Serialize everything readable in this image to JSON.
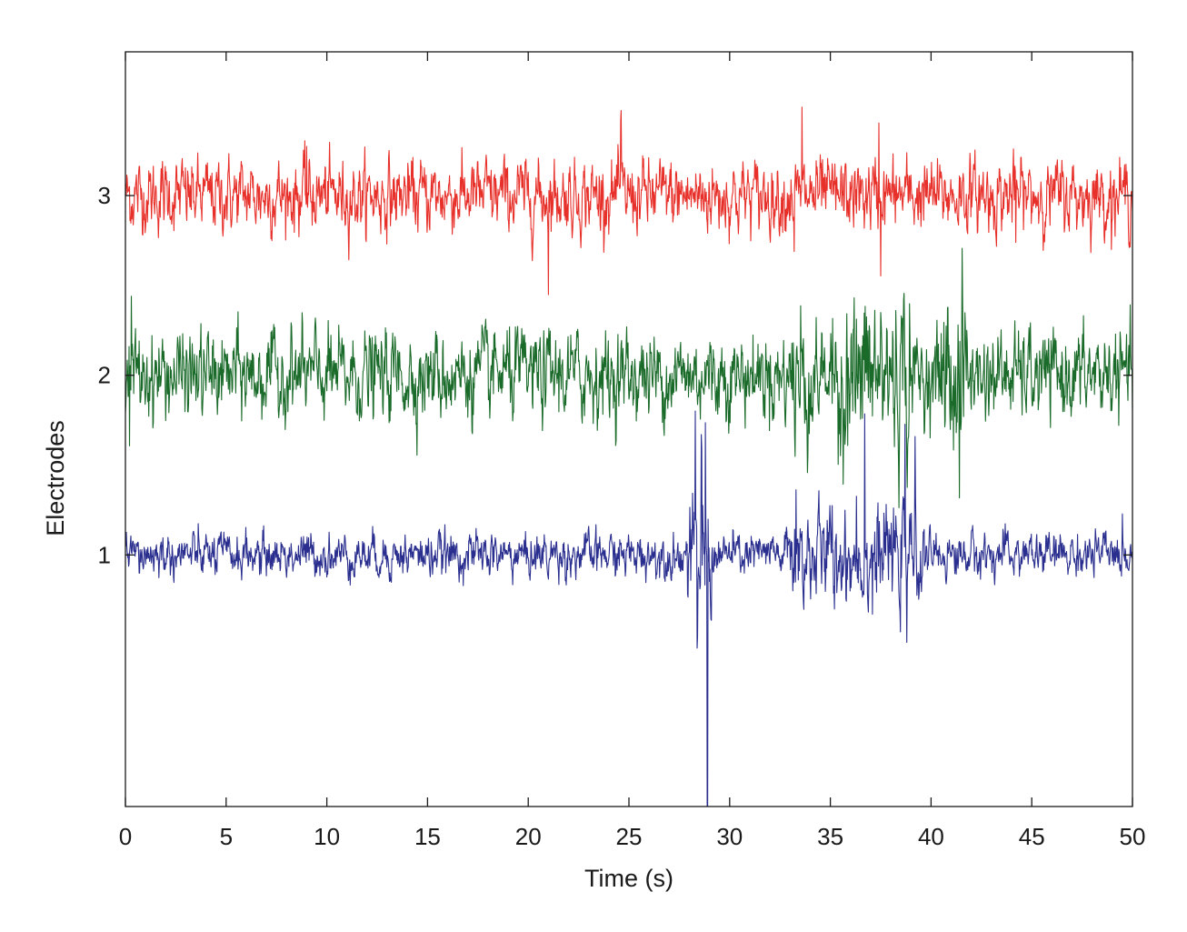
{
  "chart_data": {
    "type": "line",
    "title": "",
    "xlabel": "Time (s)",
    "ylabel": "Electrodes",
    "xlim": [
      0,
      50
    ],
    "ylim": [
      -0.4,
      3.8
    ],
    "grid": false,
    "legend": "none",
    "x_ticks": [
      0,
      5,
      10,
      15,
      20,
      25,
      30,
      35,
      40,
      45,
      50
    ],
    "y_ticks": [
      1,
      2,
      3
    ],
    "series": [
      {
        "electrode": 3,
        "color": "#e8302a",
        "baseline": 3,
        "noise_amplitude": 0.09,
        "events": [
          {
            "t": 21.0,
            "amp": -0.45
          },
          {
            "t": 24.6,
            "amp": 0.85
          },
          {
            "t": 24.6,
            "amp": -0.5
          },
          {
            "t": 33.2,
            "amp": -0.35
          },
          {
            "t": 33.6,
            "amp": 0.4
          },
          {
            "t": 37.4,
            "amp": 0.35
          },
          {
            "t": 37.5,
            "amp": -0.3
          },
          {
            "t": 44.2,
            "amp": -0.3
          },
          {
            "t": 9.0,
            "amp": 0.3
          }
        ]
      },
      {
        "electrode": 2,
        "color": "#1a6b2a",
        "baseline": 2,
        "noise_amplitude": 0.11,
        "events": [
          {
            "t": 0.2,
            "amp": -0.45
          },
          {
            "t": 0.3,
            "amp": 0.32
          },
          {
            "t": 33.5,
            "amp": -0.3
          },
          {
            "t": 35.1,
            "amp": -0.42
          },
          {
            "t": 36.6,
            "amp": -0.32
          },
          {
            "t": 41.4,
            "amp": -0.6
          },
          {
            "t": 41.2,
            "amp": 0.32
          }
        ],
        "bursts": [
          {
            "start": 33.0,
            "end": 34.2,
            "gain": 1.8
          },
          {
            "start": 35.2,
            "end": 39.0,
            "gain": 2.0
          },
          {
            "start": 40.5,
            "end": 41.8,
            "gain": 2.2
          }
        ]
      },
      {
        "electrode": 1,
        "color": "#2a2f8f",
        "baseline": 1,
        "noise_amplitude": 0.055,
        "events": [
          {
            "t": 28.3,
            "amp": 0.48
          },
          {
            "t": 28.6,
            "amp": 0.55
          },
          {
            "t": 28.4,
            "amp": -0.45
          },
          {
            "t": 28.8,
            "amp": 0.75
          },
          {
            "t": 28.9,
            "amp": -1.5
          },
          {
            "t": 33.3,
            "amp": 0.42
          },
          {
            "t": 35.2,
            "amp": -0.3
          },
          {
            "t": 36.3,
            "amp": 0.4
          },
          {
            "t": 36.7,
            "amp": 0.65
          },
          {
            "t": 37.1,
            "amp": -0.25
          },
          {
            "t": 38.7,
            "amp": 0.55
          },
          {
            "t": 38.8,
            "amp": -0.3
          },
          {
            "t": 39.2,
            "amp": 0.3
          }
        ],
        "bursts": [
          {
            "start": 27.8,
            "end": 29.2,
            "gain": 2.5
          },
          {
            "start": 32.8,
            "end": 39.6,
            "gain": 2.2
          }
        ]
      }
    ]
  }
}
